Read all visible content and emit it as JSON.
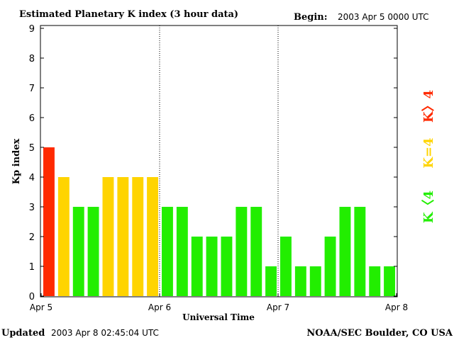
{
  "header": {
    "title": "Estimated Planetary K index (3 hour data)",
    "begin_label": "Begin:",
    "begin_value": "2003 Apr 5 0000 UTC"
  },
  "footer": {
    "updated_label": "Updated",
    "updated_value": "2003 Apr  8 02:45:04 UTC",
    "source": "NOAA/SEC Boulder, CO USA"
  },
  "legend": {
    "high": "K〉4",
    "equal": "K=4",
    "low": "K〈4"
  },
  "colors": {
    "high": "#ff2a00",
    "equal": "#ffd400",
    "low": "#22ee00"
  },
  "chart_data": {
    "type": "bar",
    "title": "Estimated Planetary K index (3 hour data)",
    "xlabel": "Universal Time",
    "ylabel": "Kp index",
    "ylim": [
      0,
      9
    ],
    "y_ticks": [
      "0",
      "1",
      "2",
      "3",
      "4",
      "5",
      "6",
      "7",
      "8",
      "9"
    ],
    "x_tick_labels": [
      "Apr 5",
      "Apr 6",
      "Apr 7",
      "Apr 8"
    ],
    "day_separators": [
      "Apr 6",
      "Apr 7"
    ],
    "bars_per_day": 8,
    "values": [
      5,
      4,
      3,
      3,
      4,
      4,
      4,
      4,
      3,
      3,
      2,
      2,
      2,
      3,
      3,
      1,
      2,
      1,
      1,
      2,
      3,
      3,
      1,
      1
    ]
  }
}
